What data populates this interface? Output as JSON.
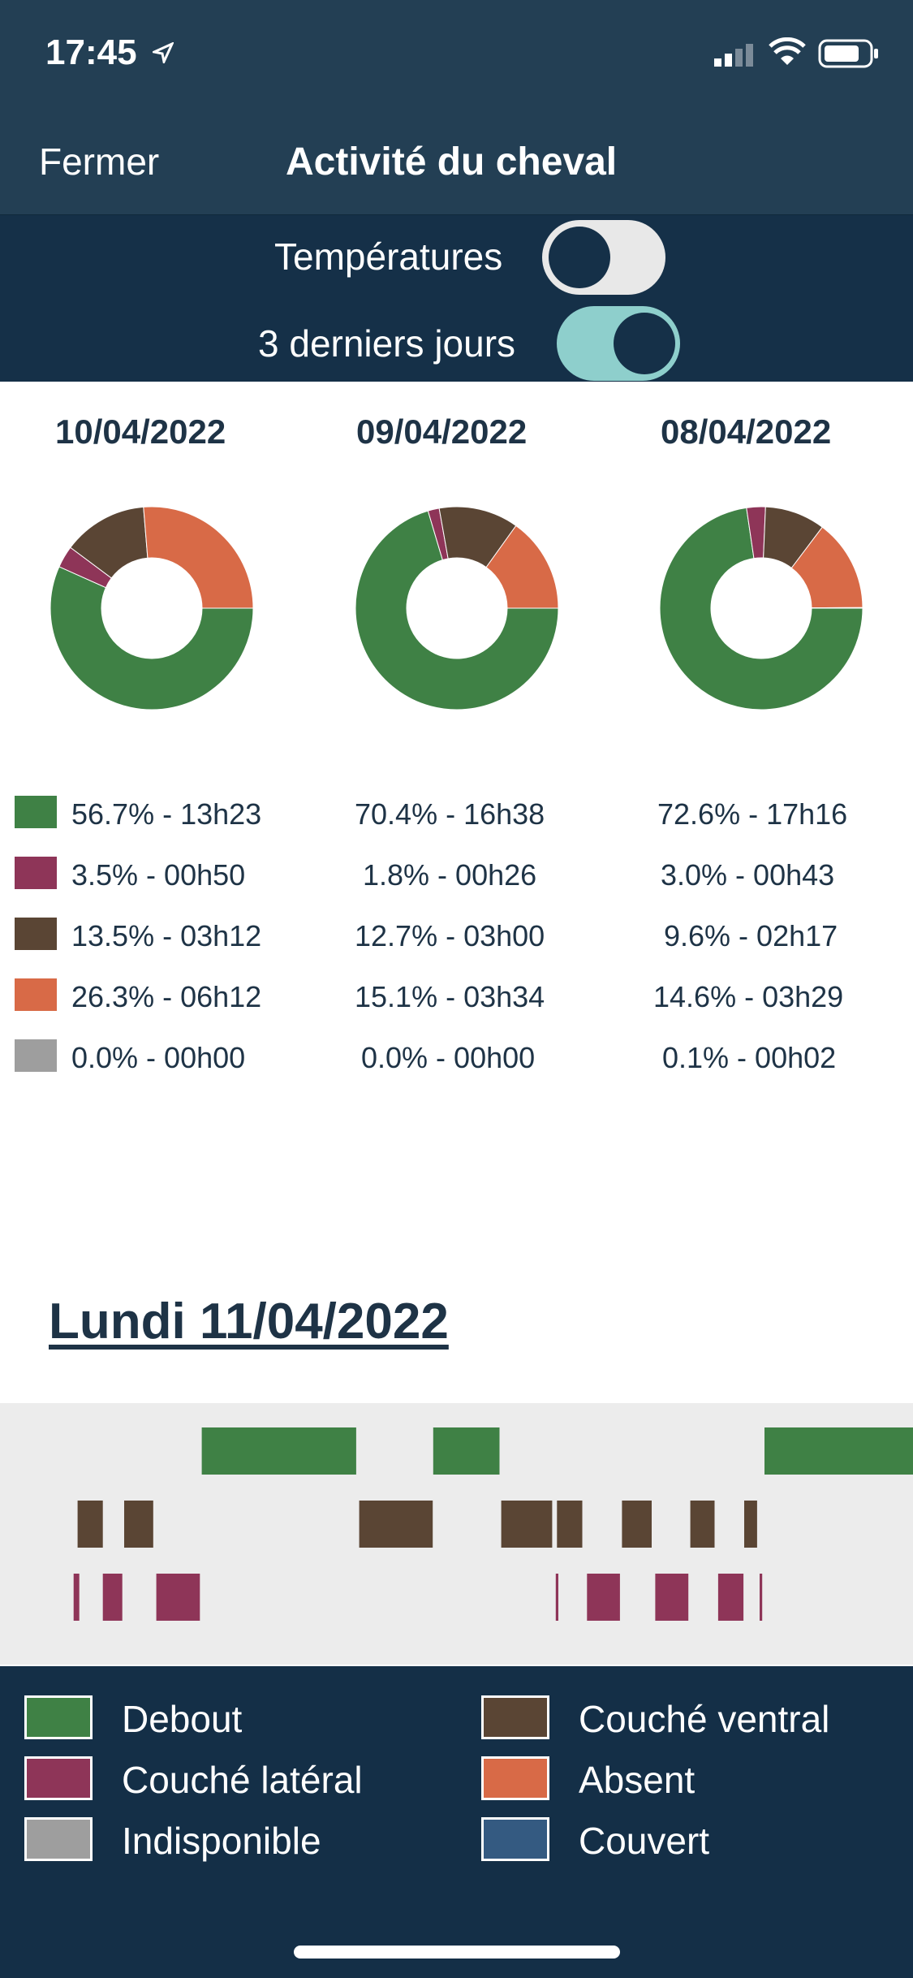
{
  "status": {
    "time": "17:45"
  },
  "nav": {
    "left": "Fermer",
    "title": "Activité du cheval"
  },
  "toggles": [
    {
      "label": "Températures",
      "on": false
    },
    {
      "label": "3 derniers jours",
      "on": true
    }
  ],
  "colors": {
    "debout": "#3f8145",
    "couche_lateral": "#8e3558",
    "couche_ventral": "#5a4534",
    "absent": "#d86a47",
    "indisponible": "#9e9e9e",
    "couvert": "#345a81"
  },
  "chart_data": [
    {
      "type": "pie",
      "title": "10/04/2022",
      "categories": [
        "Debout",
        "Couché latéral",
        "Couché ventral",
        "Absent",
        "Indisponible"
      ],
      "values": [
        56.7,
        3.5,
        13.5,
        26.3,
        0.0
      ]
    },
    {
      "type": "pie",
      "title": "09/04/2022",
      "categories": [
        "Debout",
        "Couché latéral",
        "Couché ventral",
        "Absent",
        "Indisponible"
      ],
      "values": [
        70.4,
        1.8,
        12.7,
        15.1,
        0.0
      ]
    },
    {
      "type": "pie",
      "title": "08/04/2022",
      "categories": [
        "Debout",
        "Couché latéral",
        "Couché ventral",
        "Absent",
        "Indisponible"
      ],
      "values": [
        72.6,
        3.0,
        9.6,
        14.6,
        0.1
      ]
    }
  ],
  "stats": [
    [
      "56.7% - 13h23",
      "3.5% - 00h50",
      "13.5% - 03h12",
      "26.3% - 06h12",
      "0.0% - 00h00"
    ],
    [
      "70.4% - 16h38",
      "1.8% - 00h26",
      "12.7% - 03h00",
      "15.1% - 03h34",
      "0.0% - 00h00"
    ],
    [
      "72.6% - 17h16",
      "3.0% - 00h43",
      "9.6% - 02h17",
      "14.6% - 03h29",
      "0.1% - 00h02"
    ]
  ],
  "section": {
    "title": "Lundi 11/04/2022"
  },
  "timeline": {
    "debout": [
      [
        0.221,
        0.3902
      ],
      [
        0.4745,
        0.5471
      ],
      [
        0.8373,
        1.0
      ]
    ],
    "couche_ventral": [
      [
        0.085,
        0.1126
      ],
      [
        0.136,
        0.1678
      ],
      [
        0.3934,
        0.4739
      ],
      [
        0.549,
        0.6048
      ],
      [
        0.61,
        0.6377
      ],
      [
        0.6812,
        0.7137
      ],
      [
        0.7561,
        0.7827
      ],
      [
        0.8151,
        0.8292
      ]
    ],
    "couche_lateral": [
      [
        0.0806,
        0.0868
      ],
      [
        0.1126,
        0.1339
      ],
      [
        0.1712,
        0.2189
      ],
      [
        0.6087,
        0.6115
      ],
      [
        0.6429,
        0.679
      ],
      [
        0.7177,
        0.754
      ],
      [
        0.7866,
        0.8143
      ],
      [
        0.832,
        0.8348
      ]
    ]
  },
  "legend": [
    {
      "label": "Debout",
      "color": "#3f8145"
    },
    {
      "label": "Couché ventral",
      "color": "#5a4534"
    },
    {
      "label": "Couché latéral",
      "color": "#8e3558"
    },
    {
      "label": "Absent",
      "color": "#d86a47"
    },
    {
      "label": "Indisponible",
      "color": "#9e9e9e"
    },
    {
      "label": "Couvert",
      "color": "#345a81"
    }
  ]
}
